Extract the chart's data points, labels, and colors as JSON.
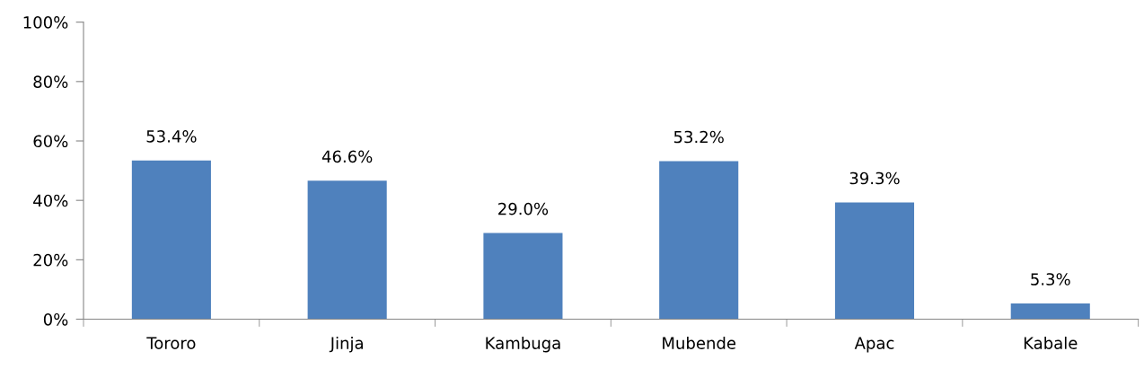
{
  "chart_data": {
    "type": "bar",
    "categories": [
      "Tororo",
      "Jinja",
      "Kambuga",
      "Mubende",
      "Apac",
      "Kabale"
    ],
    "values": [
      53.4,
      46.6,
      29.0,
      53.2,
      39.3,
      5.3
    ],
    "value_labels": [
      "53.4%",
      "46.6%",
      "29.0%",
      "53.2%",
      "39.3%",
      "5.3%"
    ],
    "color": "#4f81bd",
    "ylim": [
      0,
      100
    ],
    "yticks": [
      {
        "value": 0,
        "label": "0%"
      },
      {
        "value": 20,
        "label": "20%"
      },
      {
        "value": 40,
        "label": "40%"
      },
      {
        "value": 60,
        "label": "60%"
      },
      {
        "value": 80,
        "label": "80%"
      },
      {
        "value": 100,
        "label": "100%"
      }
    ],
    "grid": false
  }
}
